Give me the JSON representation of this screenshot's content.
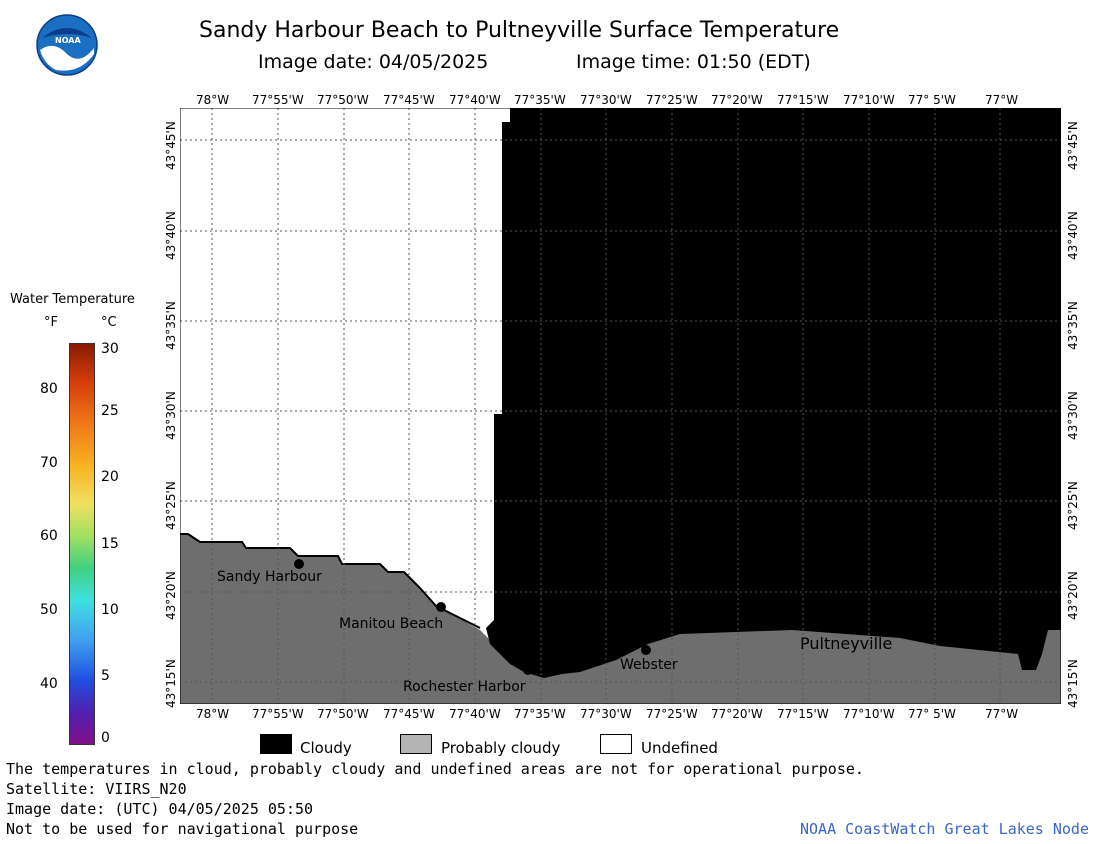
{
  "header": {
    "title": "Sandy Harbour Beach to Pultneyville Surface Temperature",
    "image_date": "Image date: 04/05/2025",
    "image_time": "Image time: 01:50 (EDT)",
    "logo_text": "NOAA"
  },
  "map": {
    "lon_labels": [
      "78°W",
      "77°55'W",
      "77°50'W",
      "77°45'W",
      "77°40'W",
      "77°35'W",
      "77°30'W",
      "77°25'W",
      "77°20'W",
      "77°15'W",
      "77°10'W",
      "77° 5'W",
      "77°W"
    ],
    "lat_labels": [
      "43°45'N",
      "43°40'N",
      "43°35'N",
      "43°30'N",
      "43°25'N",
      "43°20'N",
      "43°15'N"
    ],
    "places": [
      {
        "name": "Sandy Harbour"
      },
      {
        "name": "Manitou Beach"
      },
      {
        "name": "Rochester Harbor"
      },
      {
        "name": "Webster"
      },
      {
        "name": "Pultneyville"
      }
    ],
    "colors": {
      "cloudy": "#000000",
      "probably_cloudy": "#6e6e6e",
      "undefined": "#ffffff",
      "grid": "#555555"
    }
  },
  "colorbar": {
    "title": "Water Temperature",
    "unit_f": "°F",
    "unit_c": "°C",
    "f_ticks": [
      "80",
      "70",
      "60",
      "50",
      "40"
    ],
    "c_ticks": [
      "30",
      "25",
      "20",
      "15",
      "10",
      "5",
      "0"
    ]
  },
  "legend": {
    "cloudy": "Cloudy",
    "probably_cloudy": "Probably cloudy",
    "undefined": "Undefined"
  },
  "footer": {
    "note": "The temperatures in cloud, probably cloudy and undefined areas are not for operational purpose.",
    "satellite": "Satellite: VIIRS_N20",
    "utc_date": "Image date: (UTC) 04/05/2025  05:50",
    "nav_warning": "Not to be used for navigational purpose",
    "credit": "NOAA CoastWatch Great Lakes Node"
  }
}
